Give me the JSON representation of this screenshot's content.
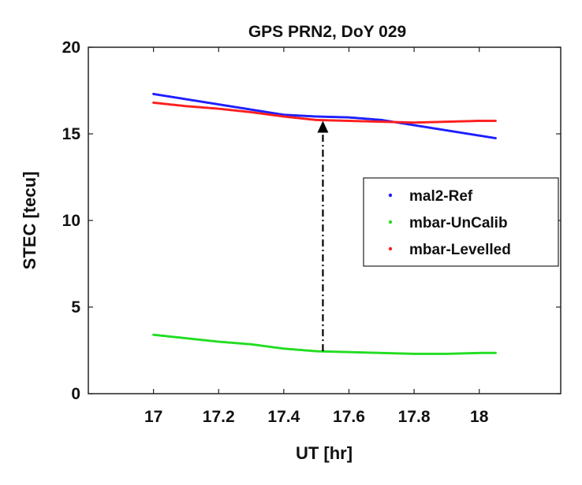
{
  "chart_data": {
    "type": "scatter",
    "title": "GPS PRN2,  DoY 029",
    "xlabel": "UT [hr]",
    "ylabel": "STEC [tecu]",
    "xlim": [
      16.8,
      18.25
    ],
    "ylim": [
      0,
      20
    ],
    "xticks": [
      17,
      17.2,
      17.4,
      17.6,
      17.8,
      18
    ],
    "yticks": [
      0,
      5,
      10,
      15,
      20
    ],
    "grid": false,
    "legend_position": "right",
    "series": [
      {
        "name": "mal2-Ref",
        "color": "#1f1fff",
        "x": [
          17.0,
          17.1,
          17.2,
          17.3,
          17.4,
          17.5,
          17.6,
          17.7,
          17.8,
          17.9,
          18.0,
          18.05
        ],
        "y": [
          17.3,
          17.0,
          16.7,
          16.4,
          16.1,
          16.0,
          15.95,
          15.8,
          15.5,
          15.2,
          14.9,
          14.75
        ]
      },
      {
        "name": "mbar-UnCalib",
        "color": "#22dd22",
        "x": [
          17.0,
          17.1,
          17.2,
          17.3,
          17.4,
          17.5,
          17.6,
          17.7,
          17.8,
          17.9,
          18.0,
          18.05
        ],
        "y": [
          3.4,
          3.2,
          3.0,
          2.85,
          2.6,
          2.45,
          2.4,
          2.35,
          2.3,
          2.3,
          2.35,
          2.35
        ]
      },
      {
        "name": "mbar-Levelled",
        "color": "#ff1f1f",
        "x": [
          17.0,
          17.1,
          17.2,
          17.3,
          17.4,
          17.5,
          17.6,
          17.7,
          17.8,
          17.9,
          18.0,
          18.05
        ],
        "y": [
          16.8,
          16.6,
          16.45,
          16.25,
          16.0,
          15.8,
          15.75,
          15.7,
          15.65,
          15.7,
          15.75,
          15.75
        ]
      }
    ],
    "annotations": [
      {
        "type": "arrow",
        "style": "dash-dot",
        "color": "#000000",
        "x": 17.52,
        "y_from": 2.45,
        "y_to": 15.75
      }
    ]
  }
}
